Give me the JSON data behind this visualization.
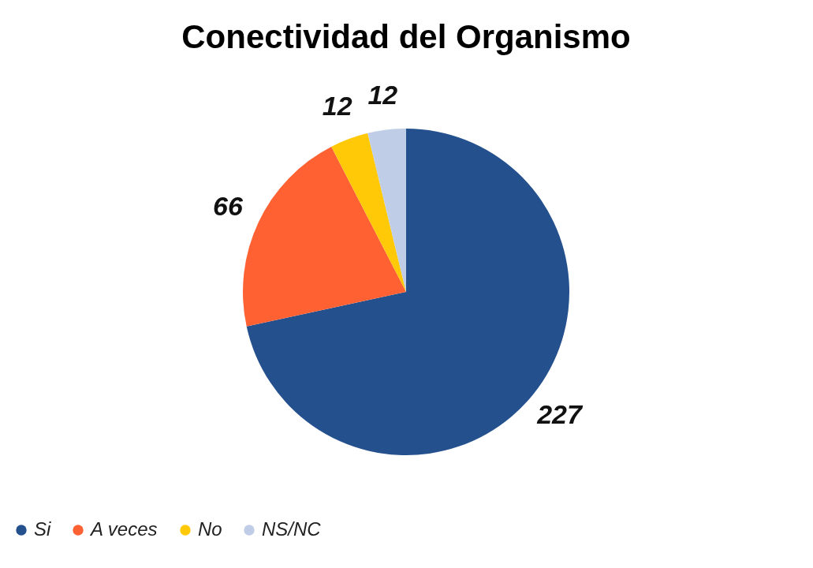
{
  "chart_data": {
    "type": "pie",
    "title": "Conectividad del Organismo",
    "categories": [
      "Si",
      "A veces",
      "No",
      "NS/NC"
    ],
    "values": [
      227,
      66,
      12,
      12
    ],
    "colors": [
      "#24508e",
      "#ff6133",
      "#ffc907",
      "#bfcde6"
    ],
    "data_labels": true,
    "legend": "bottom"
  }
}
